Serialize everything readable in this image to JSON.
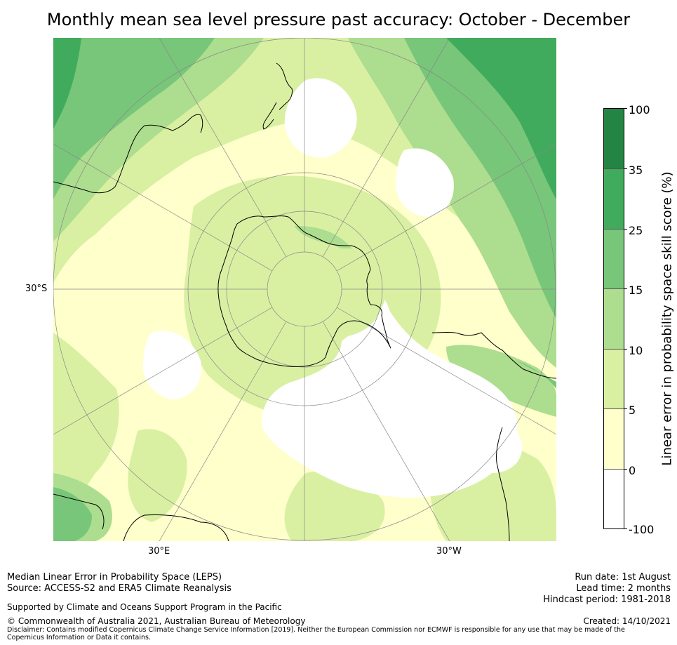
{
  "title": "Monthly mean sea level pressure past accuracy: October - December",
  "map": {
    "projection": "south-polar-stereographic",
    "latitude_labels": [
      "30°S"
    ],
    "longitude_labels": [
      "30°E",
      "30°W"
    ],
    "coastline_color": "#000000",
    "graticule_color": "#888888"
  },
  "colorbar": {
    "label": "Linear error in probability space skill score (%)",
    "tick_labels": [
      "100",
      "35",
      "25",
      "15",
      "10",
      "5",
      "0",
      "-100"
    ],
    "bins": [
      {
        "range": "35 to 100",
        "color": "#238443"
      },
      {
        "range": "25 to 35",
        "color": "#41ab5d"
      },
      {
        "range": "15 to 25",
        "color": "#78c679"
      },
      {
        "range": "10 to 15",
        "color": "#addd8e"
      },
      {
        "range": "5 to 10",
        "color": "#d9f0a3"
      },
      {
        "range": "0 to 5",
        "color": "#ffffcc"
      },
      {
        "range": "-100 to 0",
        "color": "#ffffff"
      }
    ]
  },
  "footer": {
    "method": "Median Linear Error in Probability Space (LEPS)",
    "source": "Source: ACCESS-S2 and ERA5 Climate Reanalysis",
    "support": "Supported by Climate and Oceans Support Program in the Pacific",
    "copyright": "© Commonwealth of Australia 2021, Australian Bureau of Meteorology",
    "disclaimer": "Disclaimer: Contains modified Copernicus Climate Change Service Information [2019]. Neither the European Commission nor ECMWF is responsible for any use that may be made of the Copernicus Information or Data it contains.",
    "run_date": "Run date: 1st August",
    "lead_time": "Lead time: 2 months",
    "hindcast": "Hindcast period: 1981-2018",
    "created": "Created: 14/10/2021"
  }
}
